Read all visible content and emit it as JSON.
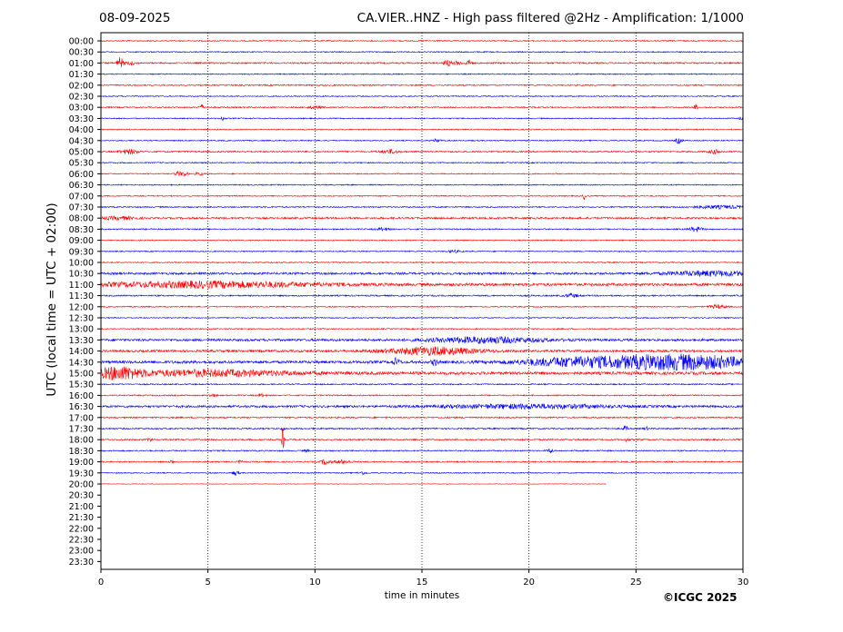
{
  "header": {
    "date": "08-09-2025",
    "title": "CA.VIER..HNZ - High pass filtered @2Hz - Amplification: 1/1000"
  },
  "footer": {
    "copyright": "©ICGC 2025"
  },
  "colors": {
    "red": "#ff0000",
    "blue": "#0000ff",
    "axis": "#000000",
    "grid": "#000000"
  },
  "chart_data": {
    "type": "line",
    "title": "CA.VIER..HNZ - High pass filtered @2Hz - Amplification: 1/1000",
    "xlabel": "time in minutes",
    "ylabel": "UTC (local time = UTC + 02:00)",
    "xlim": [
      0,
      30
    ],
    "x_ticks": [
      0,
      5,
      10,
      15,
      20,
      25,
      30
    ],
    "vertical_grid": true,
    "y_ticks": [
      "00:00",
      "00:30",
      "01:00",
      "01:30",
      "02:00",
      "02:30",
      "03:00",
      "03:30",
      "04:00",
      "04:30",
      "05:00",
      "05:30",
      "06:00",
      "06:30",
      "07:00",
      "07:30",
      "08:00",
      "08:30",
      "09:00",
      "09:30",
      "10:00",
      "10:30",
      "11:00",
      "11:30",
      "12:00",
      "12:30",
      "13:00",
      "13:30",
      "14:00",
      "14:30",
      "15:00",
      "15:30",
      "16:00",
      "16:30",
      "17:00",
      "17:30",
      "18:00",
      "18:30",
      "19:00",
      "19:30",
      "20:00",
      "20:30",
      "21:00",
      "21:30",
      "22:00",
      "22:30",
      "23:00",
      "23:30"
    ],
    "series": [
      {
        "label": "00:00",
        "color": "red",
        "duration": 30,
        "noise": 0.6,
        "events": []
      },
      {
        "label": "00:30",
        "color": "blue",
        "duration": 30,
        "noise": 0.6,
        "events": []
      },
      {
        "label": "01:00",
        "color": "red",
        "duration": 30,
        "noise": 0.8,
        "events": [
          {
            "t": 0.9,
            "amp": 6,
            "w": 0.15
          },
          {
            "t": 1.4,
            "amp": 2,
            "w": 0.2
          },
          {
            "t": 16.2,
            "amp": 3,
            "w": 0.2
          },
          {
            "t": 16.7,
            "amp": 2,
            "w": 0.2
          },
          {
            "t": 17.2,
            "amp": 3,
            "w": 0.15
          }
        ]
      },
      {
        "label": "01:30",
        "color": "blue",
        "duration": 30,
        "noise": 0.6,
        "events": []
      },
      {
        "label": "02:00",
        "color": "red",
        "duration": 30,
        "noise": 0.7,
        "events": []
      },
      {
        "label": "02:30",
        "color": "blue",
        "duration": 30,
        "noise": 0.6,
        "events": []
      },
      {
        "label": "03:00",
        "color": "red",
        "duration": 30,
        "noise": 0.7,
        "events": [
          {
            "t": 4.7,
            "amp": 3,
            "w": 0.1
          },
          {
            "t": 10.0,
            "amp": 1.5,
            "w": 0.3
          },
          {
            "t": 27.8,
            "amp": 3,
            "w": 0.1
          }
        ]
      },
      {
        "label": "03:30",
        "color": "blue",
        "duration": 30,
        "noise": 0.6,
        "events": [
          {
            "t": 5.7,
            "amp": 2,
            "w": 0.1
          },
          {
            "t": 29.9,
            "amp": 1.5,
            "w": 0.1
          }
        ]
      },
      {
        "label": "04:00",
        "color": "red",
        "duration": 30,
        "noise": 0.6,
        "events": []
      },
      {
        "label": "04:30",
        "color": "blue",
        "duration": 30,
        "noise": 0.6,
        "events": [
          {
            "t": 15.7,
            "amp": 1.5,
            "w": 0.2
          },
          {
            "t": 27.0,
            "amp": 3,
            "w": 0.15
          }
        ]
      },
      {
        "label": "05:00",
        "color": "red",
        "duration": 30,
        "noise": 0.8,
        "events": [
          {
            "t": 1.3,
            "amp": 2.5,
            "w": 0.4
          },
          {
            "t": 13.5,
            "amp": 2,
            "w": 0.4
          },
          {
            "t": 28.7,
            "amp": 2,
            "w": 0.3
          }
        ]
      },
      {
        "label": "05:30",
        "color": "blue",
        "duration": 30,
        "noise": 0.6,
        "events": []
      },
      {
        "label": "06:00",
        "color": "red",
        "duration": 30,
        "noise": 0.6,
        "events": [
          {
            "t": 3.6,
            "amp": 2.5,
            "w": 0.15
          },
          {
            "t": 3.9,
            "amp": 2.5,
            "w": 0.15
          },
          {
            "t": 4.6,
            "amp": 2,
            "w": 0.15
          }
        ]
      },
      {
        "label": "06:30",
        "color": "blue",
        "duration": 30,
        "noise": 0.6,
        "events": []
      },
      {
        "label": "07:00",
        "color": "red",
        "duration": 30,
        "noise": 0.6,
        "events": [
          {
            "t": 22.6,
            "amp": 4,
            "w": 0.08
          }
        ]
      },
      {
        "label": "07:30",
        "color": "blue",
        "duration": 30,
        "noise": 0.7,
        "events": [
          {
            "t": 29.0,
            "amp": 1.5,
            "w": 1.5
          }
        ]
      },
      {
        "label": "08:00",
        "color": "red",
        "duration": 30,
        "noise": 1.0,
        "events": [
          {
            "t": 0.8,
            "amp": 1.5,
            "w": 0.8
          }
        ]
      },
      {
        "label": "08:30",
        "color": "blue",
        "duration": 30,
        "noise": 0.7,
        "events": [
          {
            "t": 13.2,
            "amp": 1.5,
            "w": 0.3
          },
          {
            "t": 27.8,
            "amp": 2.5,
            "w": 0.3
          }
        ]
      },
      {
        "label": "09:00",
        "color": "red",
        "duration": 30,
        "noise": 0.6,
        "events": []
      },
      {
        "label": "09:30",
        "color": "blue",
        "duration": 30,
        "noise": 0.6,
        "events": [
          {
            "t": 16.5,
            "amp": 1.2,
            "w": 0.3
          }
        ]
      },
      {
        "label": "10:00",
        "color": "red",
        "duration": 30,
        "noise": 0.6,
        "events": []
      },
      {
        "label": "10:30",
        "color": "blue",
        "duration": 30,
        "noise": 1.2,
        "events": [
          {
            "t": 28.5,
            "amp": 2.5,
            "w": 2.0
          }
        ]
      },
      {
        "label": "11:00",
        "color": "red",
        "duration": 30,
        "noise": 1.5,
        "events": [
          {
            "t": 5.0,
            "amp": 3,
            "w": 5.0
          }
        ]
      },
      {
        "label": "11:30",
        "color": "blue",
        "duration": 30,
        "noise": 0.8,
        "events": [
          {
            "t": 22.0,
            "amp": 2,
            "w": 0.3
          }
        ]
      },
      {
        "label": "12:00",
        "color": "red",
        "duration": 30,
        "noise": 0.6,
        "events": [
          {
            "t": 28.8,
            "amp": 2,
            "w": 0.4
          }
        ]
      },
      {
        "label": "12:30",
        "color": "blue",
        "duration": 30,
        "noise": 0.6,
        "events": []
      },
      {
        "label": "13:00",
        "color": "red",
        "duration": 30,
        "noise": 0.6,
        "events": []
      },
      {
        "label": "13:30",
        "color": "blue",
        "duration": 30,
        "noise": 1.3,
        "events": [
          {
            "t": 18.0,
            "amp": 3,
            "w": 2.5
          }
        ]
      },
      {
        "label": "14:00",
        "color": "red",
        "duration": 30,
        "noise": 1.3,
        "events": [
          {
            "t": 15.5,
            "amp": 4,
            "w": 2.0
          }
        ]
      },
      {
        "label": "14:30",
        "color": "blue",
        "duration": 30,
        "noise": 1.5,
        "events": [
          {
            "t": 13.8,
            "amp": 4,
            "w": 0.15
          },
          {
            "t": 15.6,
            "amp": 3,
            "w": 0.15
          },
          {
            "t": 27.0,
            "amp": 8,
            "w": 3.5
          },
          {
            "t": 22.0,
            "amp": 4,
            "w": 2.5
          }
        ]
      },
      {
        "label": "15:00",
        "color": "red",
        "duration": 30,
        "noise": 1.6,
        "events": [
          {
            "t": 0.8,
            "amp": 6,
            "w": 1.0
          },
          {
            "t": 5.0,
            "amp": 3,
            "w": 4.0
          }
        ]
      },
      {
        "label": "15:30",
        "color": "blue",
        "duration": 30,
        "noise": 0.7,
        "events": []
      },
      {
        "label": "16:00",
        "color": "red",
        "duration": 30,
        "noise": 0.7,
        "events": [
          {
            "t": 5.2,
            "amp": 1.5,
            "w": 0.2
          },
          {
            "t": 7.5,
            "amp": 1.5,
            "w": 0.2
          }
        ]
      },
      {
        "label": "16:30",
        "color": "blue",
        "duration": 30,
        "noise": 1.2,
        "events": [
          {
            "t": 20.0,
            "amp": 2,
            "w": 4.0
          }
        ]
      },
      {
        "label": "17:00",
        "color": "red",
        "duration": 30,
        "noise": 0.8,
        "events": []
      },
      {
        "label": "17:30",
        "color": "blue",
        "duration": 30,
        "noise": 0.8,
        "events": [
          {
            "t": 8.5,
            "amp": 4,
            "w": 0.05
          },
          {
            "t": 24.5,
            "amp": 3,
            "w": 0.1
          },
          {
            "t": 25.5,
            "amp": 1.5,
            "w": 0.1
          }
        ]
      },
      {
        "label": "18:00",
        "color": "red",
        "duration": 30,
        "noise": 0.8,
        "events": [
          {
            "t": 8.5,
            "amp": 12,
            "w": 0.05
          },
          {
            "t": 2.3,
            "amp": 2,
            "w": 0.1
          },
          {
            "t": 24.6,
            "amp": 2,
            "w": 0.1
          }
        ]
      },
      {
        "label": "18:30",
        "color": "blue",
        "duration": 30,
        "noise": 0.7,
        "events": [
          {
            "t": 21.0,
            "amp": 2,
            "w": 0.15
          },
          {
            "t": 9.6,
            "amp": 1.5,
            "w": 0.1
          }
        ]
      },
      {
        "label": "19:00",
        "color": "red",
        "duration": 30,
        "noise": 0.7,
        "events": [
          {
            "t": 3.3,
            "amp": 2,
            "w": 0.1
          },
          {
            "t": 6.5,
            "amp": 2,
            "w": 0.1
          },
          {
            "t": 10.5,
            "amp": 3,
            "w": 0.2
          },
          {
            "t": 11.3,
            "amp": 2,
            "w": 0.4
          }
        ]
      },
      {
        "label": "19:30",
        "color": "blue",
        "duration": 30,
        "noise": 0.6,
        "events": [
          {
            "t": 6.3,
            "amp": 2.5,
            "w": 0.15
          },
          {
            "t": 12.2,
            "amp": 1.5,
            "w": 0.2
          }
        ]
      },
      {
        "label": "20:00",
        "color": "red",
        "duration": 23.6,
        "noise": 0.3,
        "events": []
      }
    ]
  }
}
